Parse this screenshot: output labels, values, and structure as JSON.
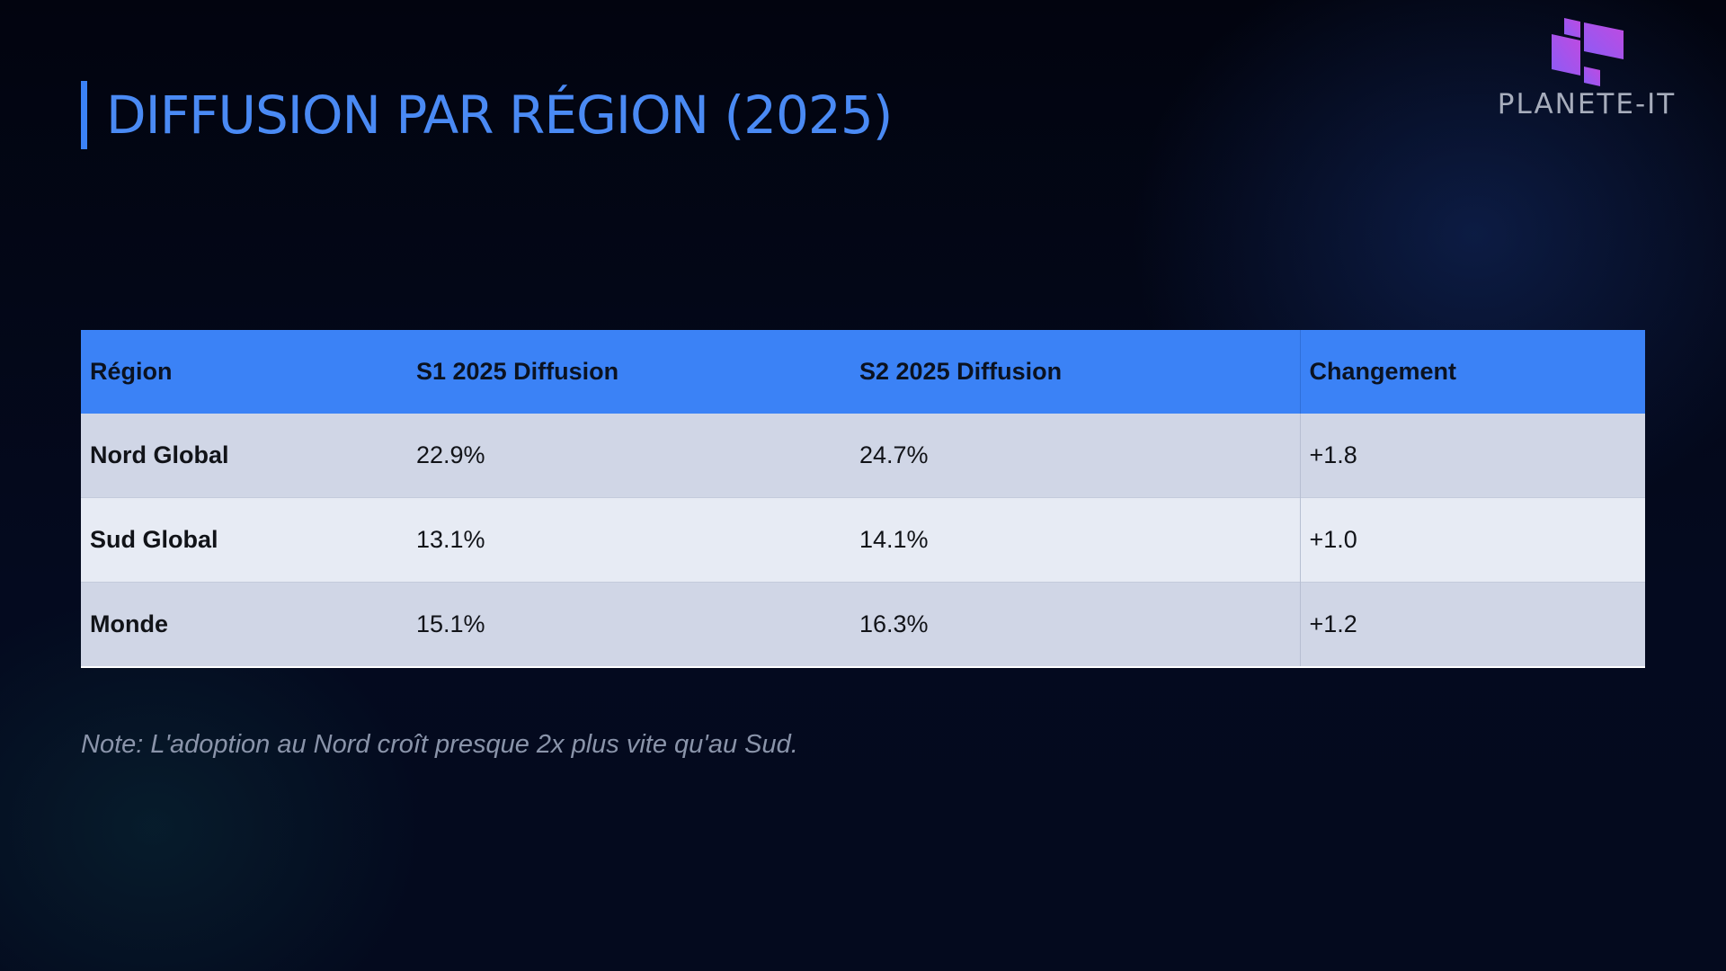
{
  "slide": {
    "title": "DIFFUSION PAR RÉGION (2025)",
    "accent_color": "#3b82f6",
    "background_color": "#030616"
  },
  "logo": {
    "text": "PLANETE-IT",
    "mark_icon": "purple-blocks-icon",
    "mark_colors": [
      "#8b5cf6",
      "#c04ae0"
    ]
  },
  "table": {
    "headers": [
      "Région",
      "S1 2025 Diffusion",
      "S2 2025 Diffusion",
      "Changement"
    ],
    "rows": [
      {
        "region": "Nord Global",
        "s1": "22.9%",
        "s2": "24.7%",
        "change": "+1.8"
      },
      {
        "region": "Sud Global",
        "s1": "13.1%",
        "s2": "14.1%",
        "change": "+1.0"
      },
      {
        "region": "Monde",
        "s1": "15.1%",
        "s2": "16.3%",
        "change": "+1.2"
      }
    ],
    "header_color": "#3b82f6",
    "row_colors": [
      "#d0d6e6",
      "#e7ebf4"
    ]
  },
  "note": "Note: L'adoption au Nord croît presque 2x plus vite qu'au Sud."
}
